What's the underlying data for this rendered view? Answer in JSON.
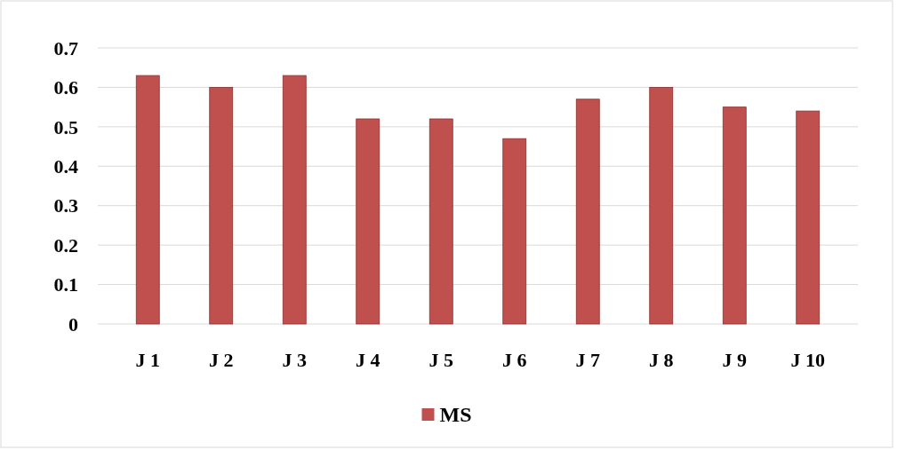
{
  "chart_data": {
    "type": "bar",
    "categories": [
      "J 1",
      "J 2",
      "J 3",
      "J 4",
      "J 5",
      "J 6",
      "J 7",
      "J 8",
      "J 9",
      "J 10"
    ],
    "series": [
      {
        "name": "MS",
        "color": "#c0504d",
        "values": [
          0.63,
          0.6,
          0.63,
          0.52,
          0.52,
          0.47,
          0.57,
          0.6,
          0.55,
          0.54
        ]
      }
    ],
    "ylim": [
      0,
      0.7
    ],
    "yticks": [
      0,
      0.1,
      0.2,
      0.3,
      0.4,
      0.5,
      0.6,
      0.7
    ],
    "grid": "y",
    "legend": "bottom"
  }
}
